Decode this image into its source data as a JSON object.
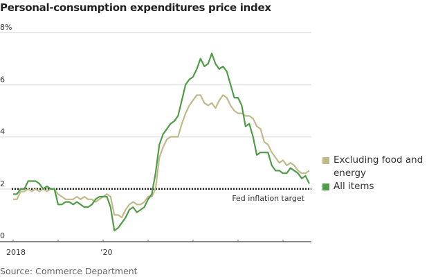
{
  "title": "Personal-consumption expenditures price index",
  "source": "Source: Commerce Department",
  "colors": {
    "core": "#c2b98a",
    "all": "#4f9d46",
    "grid": "#e8e8e8",
    "axis": "#888888",
    "target": "#222222"
  },
  "chart_data": {
    "type": "line",
    "title": "Personal-consumption expenditures price index",
    "xlabel": "",
    "ylabel": "",
    "ylim": [
      0,
      8
    ],
    "yticks": [
      0,
      2,
      4,
      6,
      8
    ],
    "ytick_labels": [
      "0",
      "2",
      "4",
      "6",
      "8%"
    ],
    "xticks": [
      2018,
      2019,
      2020,
      2021,
      2022,
      2023,
      2024
    ],
    "xtick_labels": [
      "2018",
      "",
      "’20",
      "",
      "",
      "",
      ""
    ],
    "x_start": "2018-01",
    "x_frequency": "monthly",
    "grid": true,
    "legend_position": "right",
    "annotations": [
      {
        "type": "hline",
        "y": 2,
        "label": "Fed inflation target",
        "style": "dotted"
      }
    ],
    "series": [
      {
        "name": "Excluding food and energy",
        "key": "core",
        "values": [
          1.6,
          1.6,
          1.9,
          1.9,
          2.0,
          1.9,
          2.0,
          1.9,
          2.0,
          1.9,
          2.0,
          2.0,
          1.8,
          1.7,
          1.6,
          1.6,
          1.6,
          1.7,
          1.6,
          1.7,
          1.6,
          1.6,
          1.5,
          1.6,
          1.7,
          1.8,
          1.7,
          1.0,
          1.0,
          0.9,
          1.2,
          1.4,
          1.5,
          1.4,
          1.4,
          1.5,
          1.7,
          1.7,
          2.0,
          3.2,
          3.6,
          3.9,
          4.0,
          4.0,
          4.0,
          4.5,
          4.9,
          5.2,
          5.4,
          5.6,
          5.6,
          5.3,
          5.2,
          5.3,
          5.1,
          5.4,
          5.6,
          5.5,
          5.2,
          5.0,
          4.9,
          4.9,
          4.8,
          4.8,
          4.7,
          4.4,
          4.3,
          3.8,
          3.7,
          3.4,
          3.2,
          3.0,
          3.1,
          2.9,
          3.0,
          2.9,
          2.7,
          2.6,
          2.6,
          2.7
        ]
      },
      {
        "name": "All items",
        "key": "all",
        "values": [
          1.8,
          1.8,
          2.0,
          2.0,
          2.3,
          2.3,
          2.3,
          2.2,
          2.0,
          2.1,
          2.0,
          2.0,
          1.4,
          1.4,
          1.5,
          1.5,
          1.4,
          1.5,
          1.4,
          1.3,
          1.3,
          1.4,
          1.6,
          1.7,
          1.7,
          1.7,
          1.3,
          0.4,
          0.5,
          0.7,
          0.9,
          1.2,
          1.3,
          1.1,
          1.2,
          1.3,
          1.6,
          1.8,
          2.6,
          3.7,
          4.1,
          4.3,
          4.5,
          4.6,
          4.8,
          5.4,
          6.0,
          6.2,
          6.3,
          6.6,
          7.0,
          6.7,
          6.8,
          7.2,
          6.8,
          6.6,
          6.7,
          6.5,
          6.0,
          5.5,
          5.5,
          5.2,
          4.4,
          4.5,
          4.0,
          3.3,
          3.4,
          3.4,
          3.4,
          2.9,
          2.7,
          2.7,
          2.6,
          2.6,
          2.8,
          2.7,
          2.6,
          2.4,
          2.5,
          2.2
        ]
      }
    ]
  },
  "legend": [
    {
      "label": "Excluding food and energy",
      "key": "core"
    },
    {
      "label": "All items",
      "key": "all"
    }
  ]
}
